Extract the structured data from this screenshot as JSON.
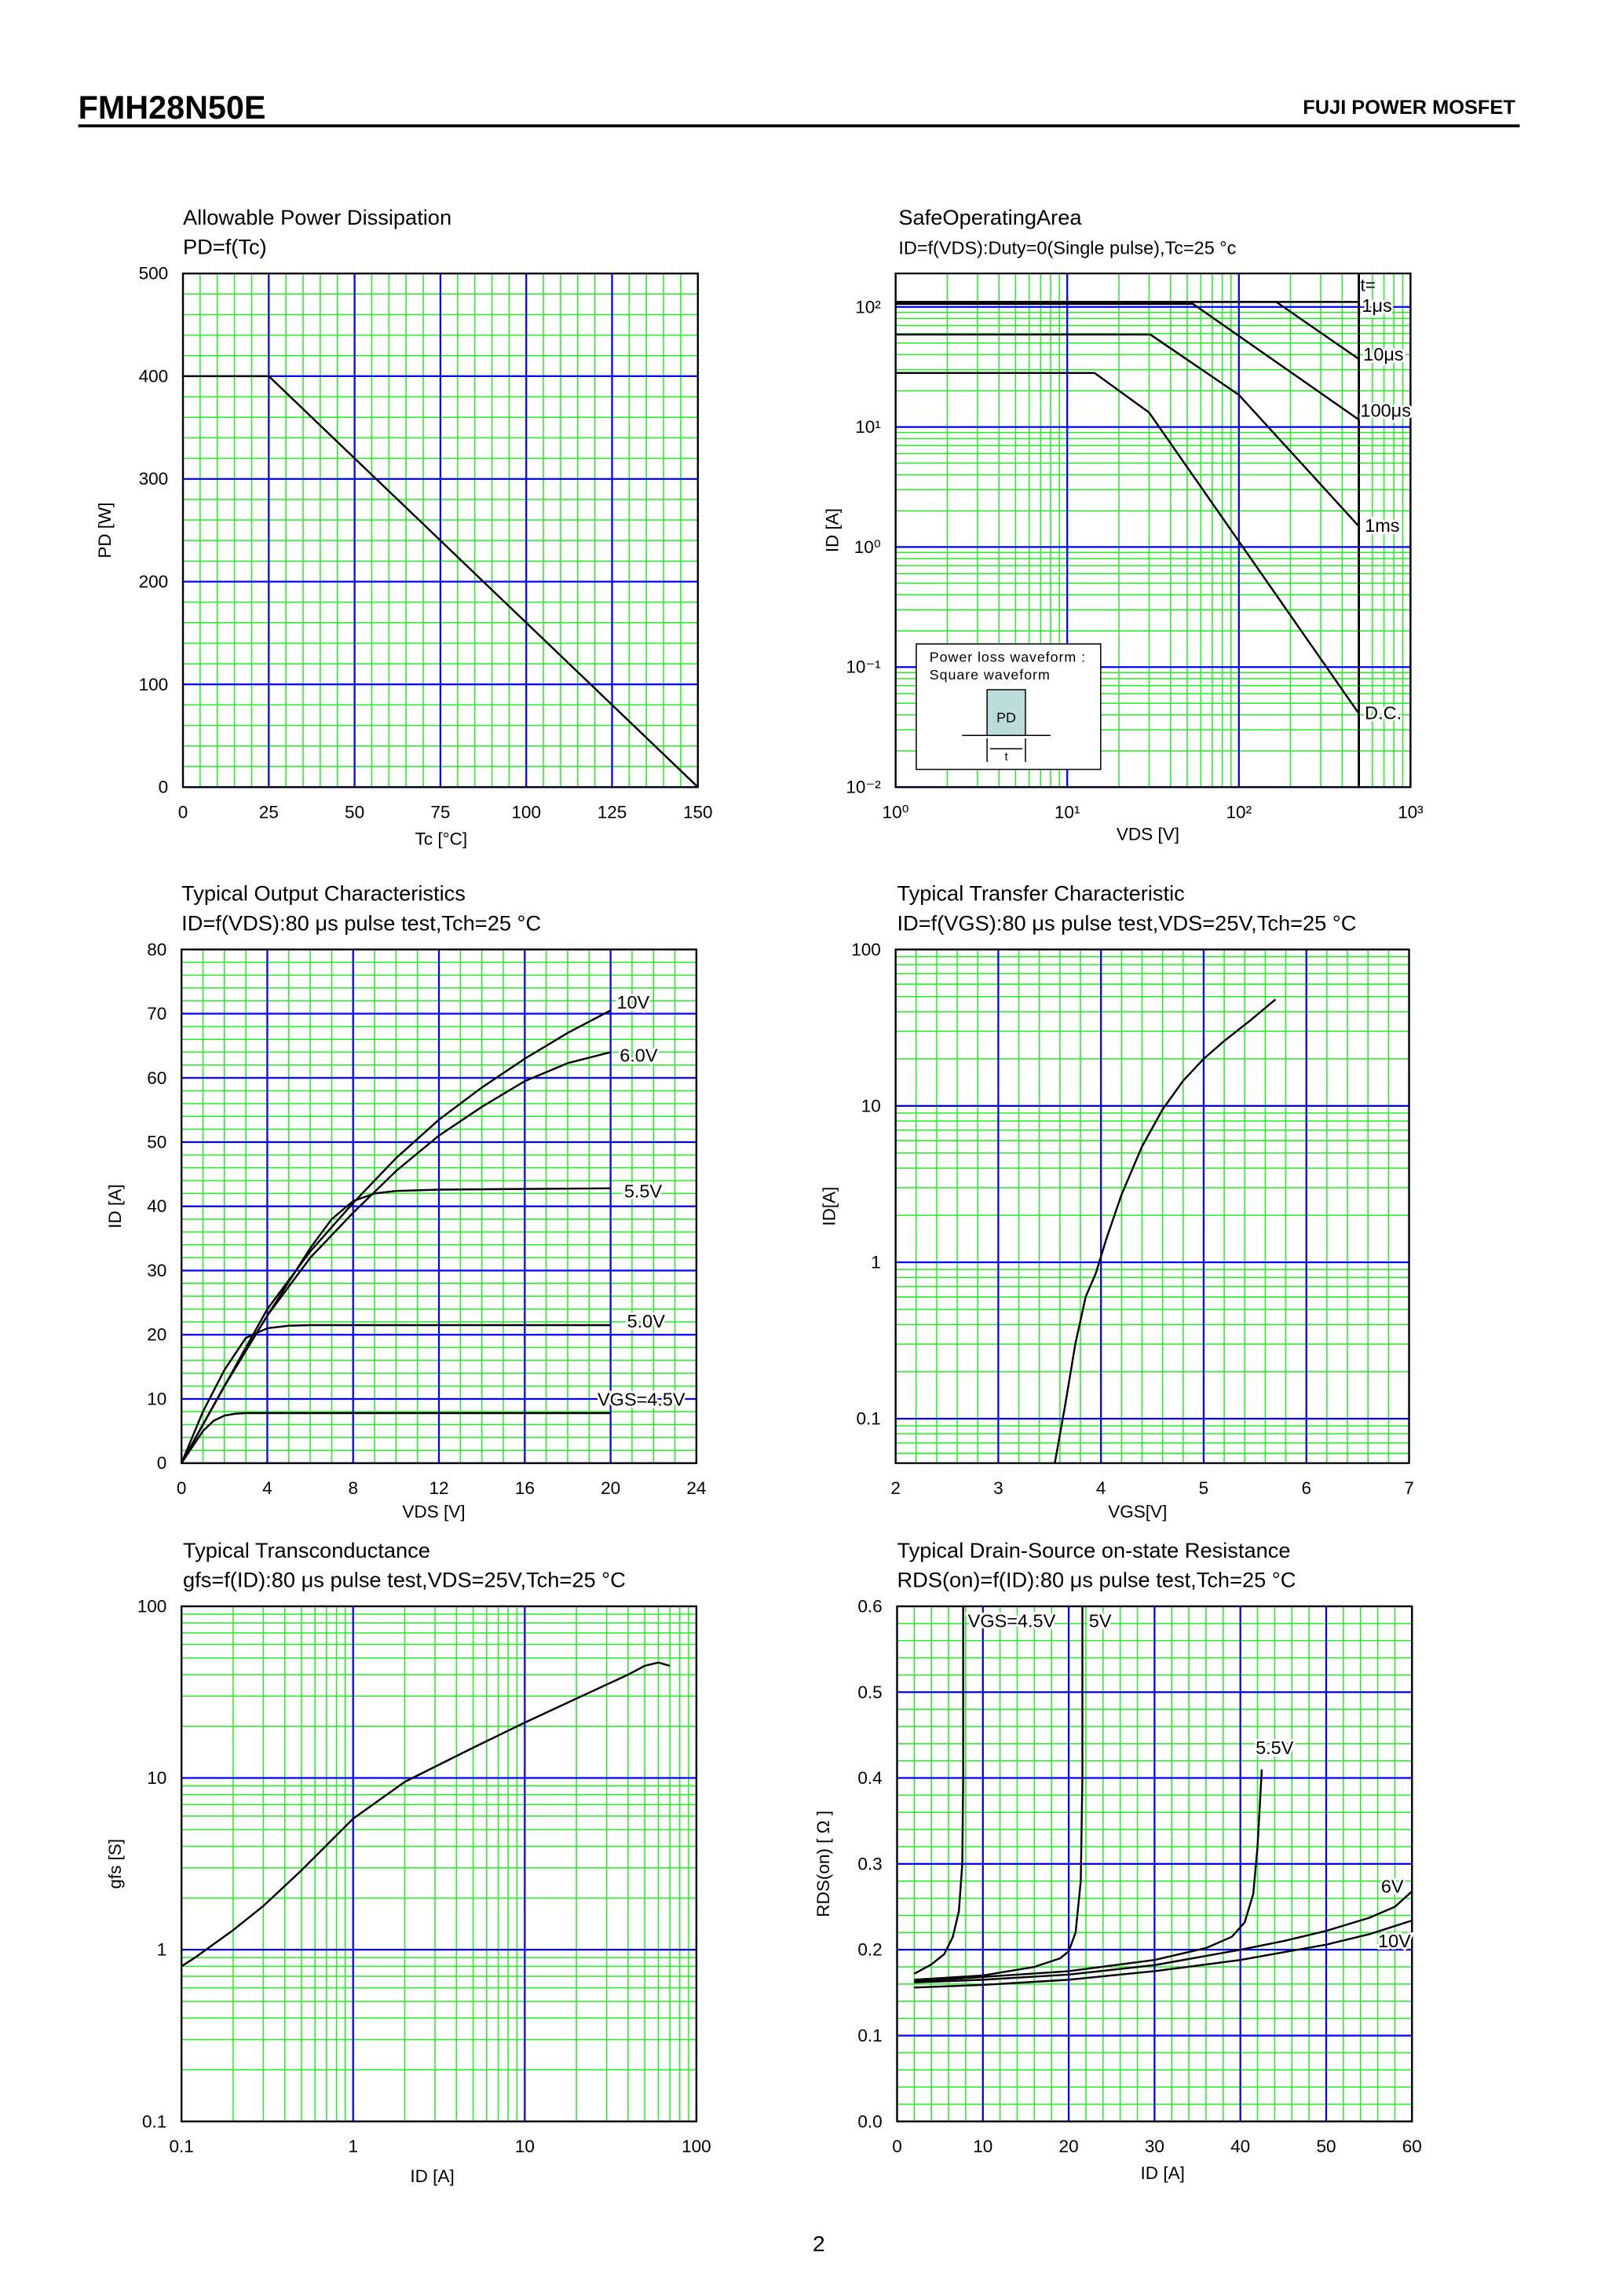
{
  "header": {
    "part_number": "FMH28N50E",
    "brand": "FUJI POWER MOSFET"
  },
  "footer": {
    "page_number": "2"
  },
  "colors": {
    "major_grid": "#0000ff",
    "minor_grid": "#22ee22",
    "curve": "#000000",
    "inset_fill": "#bcdcdc"
  },
  "soa_inset": {
    "line1": "Power loss waveform :",
    "line2": "Square waveform",
    "pd": "PD",
    "t": "t"
  },
  "chart_data": [
    {
      "type": "line",
      "title": "Allowable Power Dissipation",
      "subtitle": "PD=f(Tc)",
      "xlabel": "Tc [°C]",
      "ylabel": "PD [W]",
      "xscale": "linear",
      "yscale": "linear",
      "xlim": [
        0,
        150
      ],
      "ylim": [
        0,
        500
      ],
      "xticks": [
        0,
        25,
        50,
        75,
        100,
        125,
        150
      ],
      "xtick_labels": [
        "0",
        "25",
        "50",
        "75",
        "100",
        "125",
        "150"
      ],
      "yticks": [
        0,
        100,
        200,
        300,
        400,
        500
      ],
      "ytick_labels": [
        "0",
        "100",
        "200",
        "300",
        "400",
        "500"
      ],
      "grid": true,
      "series": [
        {
          "x": [
            0,
            25,
            150
          ],
          "y": [
            400,
            400,
            0
          ]
        }
      ]
    },
    {
      "type": "line",
      "title": "SafeOperatingArea",
      "subtitle": "ID=f(VDS):Duty=0(Single pulse),Tc=25 °c",
      "xlabel": "VDS [V]",
      "ylabel": "ID [A]",
      "xscale": "log",
      "yscale": "log",
      "xlim": [
        1,
        1000
      ],
      "ylim": [
        0.01,
        190
      ],
      "xticks": [
        1,
        10,
        100,
        1000
      ],
      "xtick_labels": [
        "10⁰",
        "10¹",
        "10²",
        "10³"
      ],
      "yticks": [
        0.01,
        0.1,
        1,
        10,
        100
      ],
      "ytick_labels": [
        "10⁻²",
        "10⁻¹",
        "10⁰",
        "10¹",
        "10²"
      ],
      "grid": true,
      "legend_header": "t=",
      "vline_x": 500,
      "series": [
        {
          "name": "1μs",
          "x": [
            1,
            500
          ],
          "y": [
            110,
            110
          ]
        },
        {
          "name": "10μs",
          "x": [
            1,
            165,
            500
          ],
          "y": [
            110,
            110,
            36.8
          ]
        },
        {
          "name": "100μs",
          "x": [
            1,
            54,
            500
          ],
          "y": [
            106,
            106,
            11.5
          ]
        },
        {
          "name": "1ms",
          "x": [
            1,
            30.5,
            100,
            500
          ],
          "y": [
            58.9,
            58.9,
            18.5,
            1.49
          ]
        },
        {
          "name": "D.C.",
          "x": [
            1,
            14.4,
            30,
            500
          ],
          "y": [
            28.2,
            28.2,
            13.2,
            0.041
          ]
        }
      ]
    },
    {
      "type": "line",
      "title": "Typical Output Characteristics",
      "subtitle": "ID=f(VDS):80 μs pulse test,Tch=25 °C",
      "xlabel": "VDS [V]",
      "ylabel": "ID [A]",
      "xscale": "linear",
      "yscale": "linear",
      "xlim": [
        0,
        24
      ],
      "ylim": [
        0,
        80
      ],
      "xticks": [
        0,
        4,
        8,
        12,
        16,
        20,
        24
      ],
      "xtick_labels": [
        "0",
        "4",
        "8",
        "12",
        "16",
        "20",
        "24"
      ],
      "yticks": [
        0,
        10,
        20,
        30,
        40,
        50,
        60,
        70,
        80
      ],
      "ytick_labels": [
        "0",
        "10",
        "20",
        "30",
        "40",
        "50",
        "60",
        "70",
        "80"
      ],
      "grid": true,
      "series": [
        {
          "name": "10V",
          "x": [
            0,
            2,
            4,
            6,
            8,
            10,
            12,
            14,
            16,
            18,
            20
          ],
          "y": [
            0,
            12,
            24,
            33,
            40.5,
            47.5,
            53.5,
            58.5,
            63,
            67,
            70.5
          ]
        },
        {
          "name": "6.0V",
          "x": [
            0,
            2,
            4,
            6,
            8,
            10,
            12,
            14,
            16,
            18,
            20
          ],
          "y": [
            0,
            12,
            23,
            32,
            39,
            45.5,
            51,
            55.5,
            59.5,
            62.3,
            64
          ]
        },
        {
          "name": "5.5V",
          "x": [
            0,
            2,
            4,
            6,
            7,
            8,
            9,
            10,
            12,
            20
          ],
          "y": [
            0,
            12,
            23,
            33.5,
            38,
            40.8,
            42,
            42.4,
            42.6,
            42.8
          ]
        },
        {
          "name": "5.0V",
          "x": [
            0,
            1,
            2,
            3,
            4,
            5,
            6,
            20
          ],
          "y": [
            0,
            8,
            14.5,
            19.5,
            21,
            21.4,
            21.5,
            21.5
          ]
        },
        {
          "name": "VGS=4.5V",
          "x": [
            0,
            1,
            1.5,
            2,
            2.5,
            3,
            20
          ],
          "y": [
            0,
            5,
            6.6,
            7.4,
            7.7,
            7.8,
            7.8
          ]
        }
      ]
    },
    {
      "type": "line",
      "title": "Typical Transfer Characteristic",
      "subtitle": "ID=f(VGS):80 μs pulse test,VDS=25V,Tch=25 °C",
      "xlabel": "VGS[V]",
      "ylabel": "ID[A]",
      "xscale": "linear",
      "yscale": "log",
      "xlim": [
        2,
        7
      ],
      "ylim": [
        0.052,
        100
      ],
      "xticks": [
        2,
        3,
        4,
        5,
        6,
        7
      ],
      "xtick_labels": [
        "2",
        "3",
        "4",
        "5",
        "6",
        "7"
      ],
      "yticks": [
        0.1,
        1,
        10,
        100
      ],
      "ytick_labels": [
        "0.1",
        "1",
        "10",
        "100"
      ],
      "grid": true,
      "series": [
        {
          "x": [
            3.55,
            3.65,
            3.75,
            3.85,
            3.95,
            4.05,
            4.2,
            4.4,
            4.6,
            4.8,
            5.0,
            5.2,
            5.45,
            5.7
          ],
          "y": [
            0.052,
            0.12,
            0.3,
            0.6,
            0.85,
            1.4,
            2.7,
            5.5,
            9.5,
            14.5,
            20,
            26,
            35,
            48
          ]
        }
      ]
    },
    {
      "type": "line",
      "title": "Typical Transconductance",
      "subtitle": "gfs=f(ID):80 μs pulse test,VDS=25V,Tch=25  °C",
      "xlabel": "ID [A]",
      "ylabel": "gfs [S]",
      "xscale": "log",
      "yscale": "log",
      "xlim": [
        0.1,
        100
      ],
      "ylim": [
        0.1,
        100
      ],
      "xticks": [
        0.1,
        1,
        10,
        100
      ],
      "xtick_labels": [
        "0.1",
        "1",
        "10",
        "100"
      ],
      "yticks": [
        0.1,
        1,
        10,
        100
      ],
      "ytick_labels": [
        "0.1",
        "1",
        "10",
        "100"
      ],
      "grid": true,
      "series": [
        {
          "x": [
            0.1,
            0.12,
            0.2,
            0.3,
            0.5,
            1,
            2,
            5,
            10,
            20,
            30,
            40,
            50,
            60,
            70
          ],
          "y": [
            0.8,
            0.9,
            1.3,
            1.8,
            2.9,
            5.8,
            9.5,
            15,
            21,
            29,
            35,
            40,
            45,
            47,
            45
          ]
        }
      ]
    },
    {
      "type": "line",
      "title": "Typical Drain-Source on-state Resistance",
      "subtitle": "RDS(on)=f(ID):80  μs pulse test,Tch=25  °C",
      "xlabel": "ID [A]",
      "ylabel": "RDS(on) [ Ω ]",
      "xscale": "linear",
      "yscale": "linear",
      "xlim": [
        0,
        60
      ],
      "ylim": [
        0,
        0.6
      ],
      "xticks": [
        0,
        10,
        20,
        30,
        40,
        50,
        60
      ],
      "xtick_labels": [
        "0",
        "10",
        "20",
        "30",
        "40",
        "50",
        "60"
      ],
      "yticks": [
        0,
        0.1,
        0.2,
        0.3,
        0.4,
        0.5,
        0.6
      ],
      "ytick_labels": [
        "0.0",
        "0.1",
        "0.2",
        "0.3",
        "0.4",
        "0.5",
        "0.6"
      ],
      "grid": true,
      "series": [
        {
          "name": "VGS=4.5V",
          "x": [
            2,
            4,
            5.5,
            6.5,
            7.2,
            7.6,
            7.7,
            7.7
          ],
          "y": [
            0.172,
            0.183,
            0.195,
            0.215,
            0.245,
            0.3,
            0.4,
            0.6
          ]
        },
        {
          "name": "5V",
          "x": [
            2,
            10,
            16,
            19,
            20,
            20.8,
            21.4,
            21.6,
            21.6
          ],
          "y": [
            0.165,
            0.17,
            0.18,
            0.19,
            0.198,
            0.22,
            0.28,
            0.4,
            0.6
          ]
        },
        {
          "name": "5.5V",
          "x": [
            2,
            20,
            30,
            36,
            39,
            40.5,
            41.5,
            42,
            42.5
          ],
          "y": [
            0.163,
            0.175,
            0.188,
            0.202,
            0.215,
            0.232,
            0.265,
            0.32,
            0.41
          ]
        },
        {
          "name": "6V",
          "x": [
            2,
            10,
            20,
            30,
            40,
            45,
            50,
            55,
            58,
            60
          ],
          "y": [
            0.162,
            0.165,
            0.171,
            0.182,
            0.2,
            0.21,
            0.222,
            0.237,
            0.25,
            0.268
          ]
        },
        {
          "name": "10V",
          "x": [
            2,
            10,
            20,
            30,
            40,
            50,
            55,
            60
          ],
          "y": [
            0.156,
            0.159,
            0.165,
            0.175,
            0.188,
            0.206,
            0.218,
            0.234
          ]
        }
      ]
    }
  ]
}
